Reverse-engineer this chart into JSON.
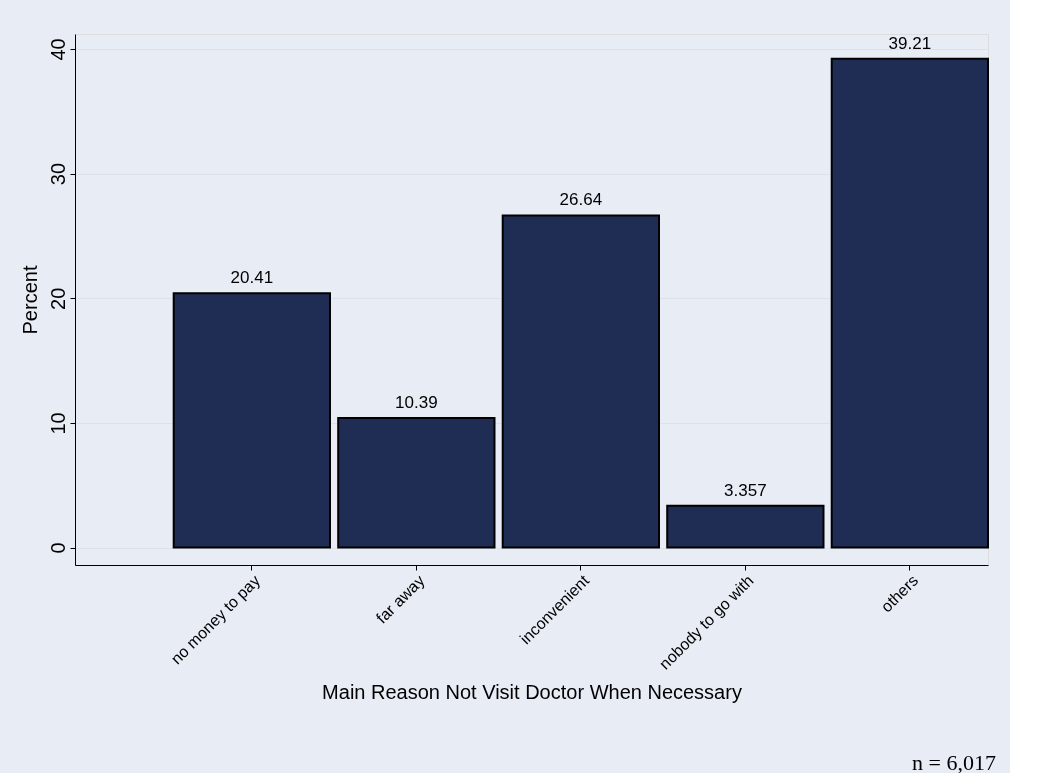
{
  "chart_data": {
    "type": "bar",
    "xlabel": "Main Reason Not Visit Doctor When Necessary",
    "ylabel": "Percent",
    "categories": [
      "no money to pay",
      "far away",
      "inconvenient",
      "nobody to go with",
      "others"
    ],
    "values": [
      20.41,
      10.39,
      26.64,
      3.357,
      39.21
    ],
    "color": "#1f2d54",
    "ylim": [
      -1.4,
      41.2
    ],
    "yticks": [
      0,
      10,
      20,
      30,
      40
    ],
    "grid": "y",
    "data_labels": true,
    "annotations": [
      "n = 6,017"
    ]
  }
}
